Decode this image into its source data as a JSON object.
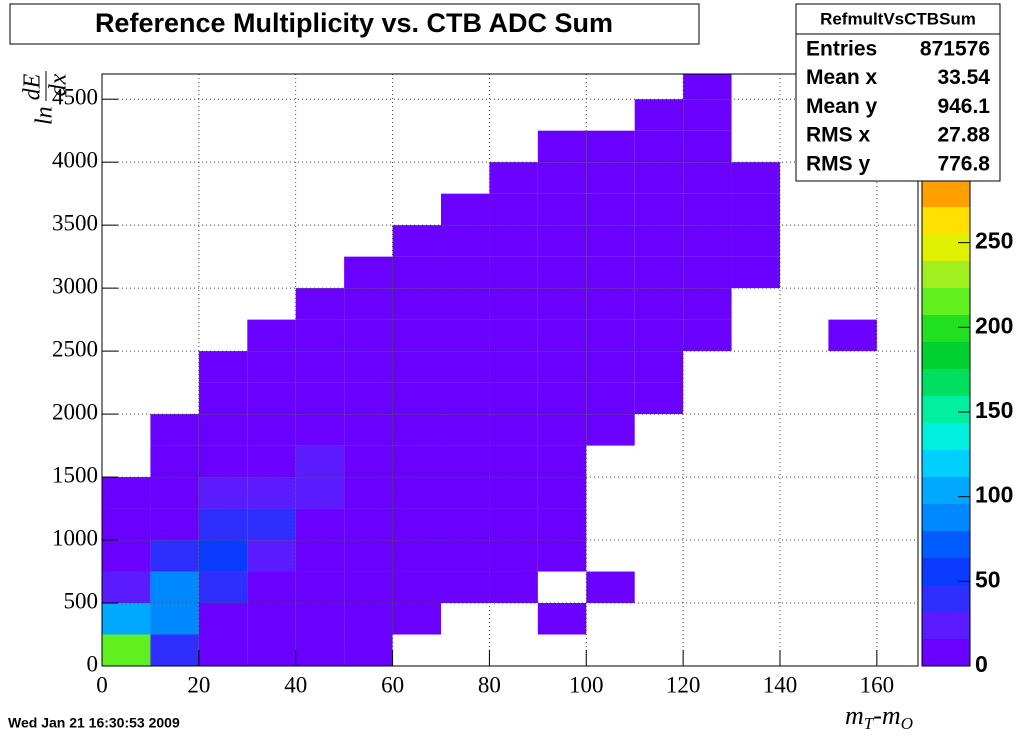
{
  "chart_data": {
    "type": "heatmap",
    "title": "Reference Multiplicity vs. CTB ADC Sum",
    "x_label": {
      "main": "m",
      "sub": "T",
      "main2": "-m",
      "sub2": "O"
    },
    "y_label": {
      "prefix": "ln",
      "num": "dE",
      "den": "dx"
    },
    "footer": "Wed Jan 21 16:30:53 2009",
    "stats": {
      "name": "RefmultVsCTBSum",
      "rows": [
        {
          "label": "Entries",
          "value": 871576
        },
        {
          "label": "Mean x",
          "value": 33.54
        },
        {
          "label": "Mean y",
          "value": 946.1
        },
        {
          "label": "RMS x",
          "value": 27.88
        },
        {
          "label": "RMS y",
          "value": 776.8
        }
      ]
    },
    "xbins": [
      0,
      10,
      20,
      30,
      40,
      50,
      60,
      70,
      80,
      90,
      100,
      110,
      120,
      130,
      140,
      150,
      160,
      170
    ],
    "ybins": [
      0,
      250,
      500,
      750,
      1000,
      1250,
      1500,
      1750,
      2000,
      2250,
      2500,
      2750,
      3000,
      3250,
      3500,
      3750,
      4000,
      4250,
      4500,
      4750
    ],
    "z": [
      [
        220,
        40,
        6,
        2,
        1,
        1,
        0,
        0,
        0,
        0,
        0,
        0,
        0,
        0,
        0,
        0,
        0
      ],
      [
        110,
        90,
        15,
        3,
        1,
        1,
        1,
        0,
        0,
        1,
        0,
        0,
        0,
        0,
        0,
        0,
        0
      ],
      [
        30,
        90,
        35,
        6,
        2,
        1,
        1,
        1,
        1,
        0,
        1,
        0,
        0,
        0,
        0,
        0,
        0
      ],
      [
        8,
        40,
        50,
        20,
        4,
        2,
        1,
        1,
        1,
        1,
        0,
        0,
        0,
        0,
        0,
        0,
        0
      ],
      [
        2,
        15,
        35,
        35,
        12,
        3,
        1,
        1,
        1,
        1,
        0,
        0,
        0,
        0,
        0,
        0,
        0
      ],
      [
        1,
        5,
        18,
        30,
        22,
        8,
        2,
        1,
        1,
        1,
        0,
        0,
        0,
        0,
        0,
        0,
        0
      ],
      [
        0,
        2,
        8,
        15,
        16,
        12,
        3,
        1,
        1,
        1,
        0,
        0,
        0,
        0,
        0,
        0,
        0
      ],
      [
        0,
        1,
        3,
        8,
        10,
        8,
        6,
        2,
        1,
        1,
        1,
        0,
        0,
        0,
        0,
        0,
        0
      ],
      [
        0,
        0,
        1,
        4,
        6,
        6,
        6,
        4,
        2,
        1,
        1,
        1,
        0,
        0,
        0,
        0,
        0
      ],
      [
        0,
        0,
        1,
        2,
        4,
        5,
        5,
        5,
        4,
        2,
        1,
        1,
        0,
        0,
        0,
        0,
        0
      ],
      [
        0,
        0,
        0,
        1,
        2,
        4,
        5,
        5,
        5,
        4,
        2,
        1,
        1,
        0,
        0,
        1,
        0
      ],
      [
        0,
        0,
        0,
        0,
        1,
        2,
        4,
        5,
        5,
        5,
        4,
        2,
        1,
        0,
        0,
        0,
        0
      ],
      [
        0,
        0,
        0,
        0,
        0,
        1,
        2,
        4,
        5,
        5,
        5,
        3,
        1,
        1,
        0,
        0,
        0
      ],
      [
        0,
        0,
        0,
        0,
        0,
        0,
        1,
        2,
        4,
        5,
        5,
        3,
        1,
        1,
        0,
        0,
        0
      ],
      [
        0,
        0,
        0,
        0,
        0,
        0,
        0,
        1,
        2,
        3,
        3,
        3,
        1,
        1,
        0,
        0,
        0
      ],
      [
        0,
        0,
        0,
        0,
        0,
        0,
        0,
        0,
        1,
        1,
        2,
        1,
        1,
        1,
        0,
        0,
        0
      ],
      [
        0,
        0,
        0,
        0,
        0,
        0,
        0,
        0,
        0,
        1,
        1,
        1,
        1,
        0,
        0,
        0,
        0
      ],
      [
        0,
        0,
        0,
        0,
        0,
        0,
        0,
        0,
        0,
        0,
        0,
        1,
        1,
        0,
        0,
        0,
        0
      ],
      [
        0,
        0,
        0,
        0,
        0,
        0,
        0,
        0,
        0,
        0,
        0,
        0,
        1,
        0,
        0,
        0,
        0
      ]
    ],
    "xlim": [
      0,
      168.5
    ],
    "xticks": [
      0,
      20,
      40,
      60,
      80,
      100,
      120,
      140,
      160
    ],
    "ylim": [
      0,
      4700
    ],
    "yticks": [
      0,
      500,
      1000,
      1500,
      2000,
      2500,
      3000,
      3500,
      4000,
      4500
    ],
    "zlim": [
      0,
      287
    ],
    "zticks": [
      0,
      50,
      100,
      150,
      200,
      250
    ],
    "palette": [
      "#6a00ff",
      "#5a1cff",
      "#2e2eff",
      "#0a3cff",
      "#005cff",
      "#0088ff",
      "#00a8ff",
      "#00d0ff",
      "#00f0e0",
      "#00f0a0",
      "#00e060",
      "#00d030",
      "#20e020",
      "#60f020",
      "#a0f020",
      "#e0f000",
      "#ffe000",
      "#ffa000"
    ],
    "grid": true
  }
}
